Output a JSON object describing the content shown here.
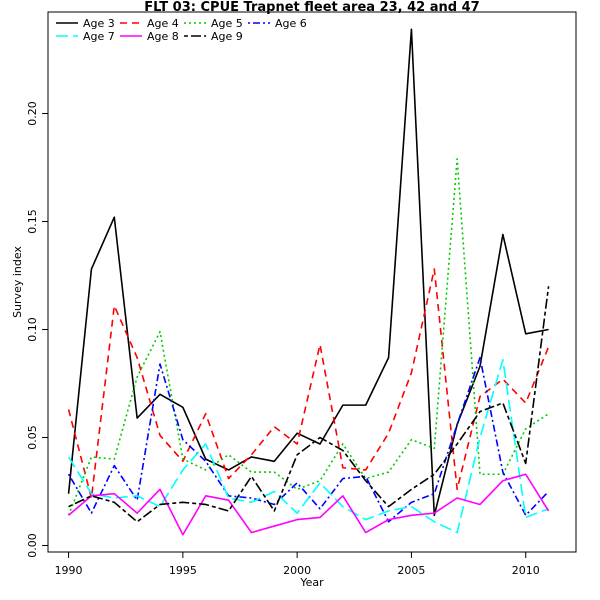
{
  "chart_data": {
    "type": "line",
    "title": "FLT 03: CPUE Trapnet fleet area 23, 42 and 47",
    "xlabel": "Year",
    "ylabel": "Survey index",
    "xlim": [
      1989.1,
      2012.2
    ],
    "ylim": [
      -0.003,
      0.247
    ],
    "x_ticks": [
      1990,
      1995,
      2000,
      2005,
      2010
    ],
    "y_ticks": [
      0.0,
      0.05,
      0.1,
      0.15,
      0.2
    ],
    "x_tick_labels": [
      "1990",
      "1995",
      "2000",
      "2005",
      "2010"
    ],
    "y_tick_labels": [
      "0.00",
      "0.05",
      "0.10",
      "0.15",
      "0.20"
    ],
    "legend_position": "top-left",
    "x": [
      1990,
      1991,
      1992,
      1993,
      1994,
      1995,
      1996,
      1997,
      1998,
      1999,
      2000,
      2001,
      2002,
      2003,
      2004,
      2005,
      2006,
      2007,
      2008,
      2009,
      2010,
      2011
    ],
    "series": [
      {
        "name": "Age 3",
        "color": "#000000",
        "dash": "solid",
        "values": [
          0.024,
          0.128,
          0.152,
          0.059,
          0.07,
          0.064,
          0.04,
          0.035,
          0.041,
          0.039,
          0.052,
          0.047,
          0.065,
          0.065,
          0.087,
          0.239,
          0.014,
          0.056,
          0.083,
          0.144,
          0.098,
          0.1
        ]
      },
      {
        "name": "Age 4",
        "color": "#ff0000",
        "dash": "dashed",
        "values": [
          0.063,
          0.022,
          0.111,
          0.087,
          0.051,
          0.039,
          0.061,
          0.031,
          0.042,
          0.055,
          0.047,
          0.093,
          0.036,
          0.035,
          0.052,
          0.08,
          0.128,
          0.026,
          0.069,
          0.077,
          0.066,
          0.092
        ]
      },
      {
        "name": "Age 5",
        "color": "#00cc00",
        "dash": "dotted",
        "values": [
          0.014,
          0.041,
          0.04,
          0.078,
          0.099,
          0.04,
          0.035,
          0.042,
          0.034,
          0.034,
          0.026,
          0.03,
          0.047,
          0.031,
          0.034,
          0.049,
          0.045,
          0.179,
          0.033,
          0.033,
          0.054,
          0.061
        ]
      },
      {
        "name": "Age 6",
        "color": "#0000ff",
        "dash": "dotdash",
        "values": [
          0.033,
          0.015,
          0.037,
          0.021,
          0.084,
          0.049,
          0.039,
          0.023,
          0.022,
          0.019,
          0.029,
          0.017,
          0.031,
          0.032,
          0.011,
          0.02,
          0.024,
          0.056,
          0.087,
          0.034,
          0.014,
          0.025
        ]
      },
      {
        "name": "Age 7",
        "color": "#00ffff",
        "dash": "longdash",
        "values": [
          0.041,
          0.024,
          0.022,
          0.023,
          0.018,
          0.035,
          0.047,
          0.022,
          0.02,
          0.025,
          0.015,
          0.029,
          0.018,
          0.012,
          0.016,
          0.018,
          0.011,
          0.006,
          0.05,
          0.086,
          0.013,
          0.017
        ]
      },
      {
        "name": "Age 8",
        "color": "#ff00ff",
        "dash": "solid",
        "values": [
          0.014,
          0.023,
          0.024,
          0.015,
          0.026,
          0.005,
          0.023,
          0.021,
          0.006,
          0.009,
          0.012,
          0.013,
          0.023,
          0.006,
          0.012,
          0.014,
          0.015,
          0.022,
          0.019,
          0.03,
          0.033,
          0.016
        ]
      },
      {
        "name": "Age 9",
        "color": "#000000",
        "dash": "twodash",
        "values": [
          0.018,
          0.023,
          0.02,
          0.011,
          0.019,
          0.02,
          0.019,
          0.016,
          0.032,
          0.016,
          0.042,
          0.05,
          0.044,
          0.03,
          0.018,
          0.026,
          0.033,
          0.047,
          0.062,
          0.066,
          0.038,
          0.12
        ]
      }
    ],
    "legend_order": [
      0,
      1,
      2,
      3,
      4,
      5,
      6
    ]
  }
}
